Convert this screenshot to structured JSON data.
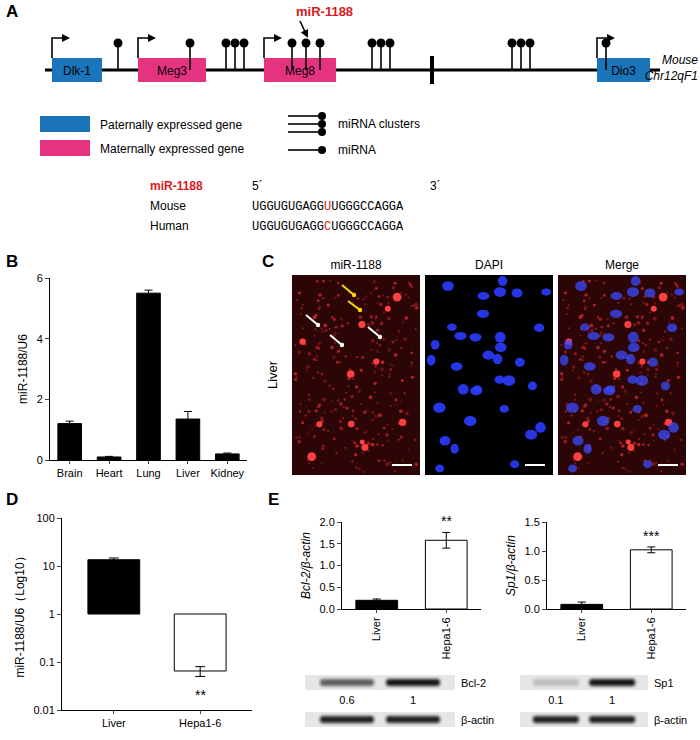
{
  "panel_labels": [
    "A",
    "B",
    "C",
    "D",
    "E"
  ],
  "diagram": {
    "genes": [
      {
        "label": "Dlk-1",
        "expression": "paternal"
      },
      {
        "label": "Meg3",
        "expression": "maternal"
      },
      {
        "label": "Meg8",
        "expression": "maternal"
      },
      {
        "label": "Dio3",
        "expression": "paternal"
      }
    ],
    "colors": {
      "paternal": "#1b75bb",
      "maternal": "#e6337f"
    },
    "mirna_label": "miR-1188",
    "chromosome": [
      "Mouse",
      "Chr12qF1"
    ],
    "legend": {
      "paternal": "Paternally expressed gene",
      "maternal": "Maternally expressed gene",
      "cluster": "miRNA clusters",
      "single": "miRNA"
    },
    "alignment": {
      "title": "miR-1188",
      "five_prime": "5´",
      "three_prime": "3´",
      "rows": [
        {
          "name": "Mouse",
          "before": "UGGUGUGAGG",
          "variant": "U",
          "after": "UGGGCCAGGA"
        },
        {
          "name": "Human",
          "before": "UGGUGUGAGG",
          "variant": "C",
          "after": "UGGGCCAGGA"
        }
      ]
    }
  },
  "chart_data": [
    {
      "type": "bar",
      "categories": [
        "Brain",
        "Heart",
        "Lung",
        "Liver",
        "Kidney"
      ],
      "values": [
        1.2,
        0.1,
        5.5,
        1.35,
        0.2
      ],
      "errors": [
        0.08,
        0.02,
        0.1,
        0.25,
        0.03
      ],
      "color": "#000000",
      "y_label": "miR-1188/U6",
      "ylim": [
        0,
        6
      ],
      "yticks": [
        0,
        2,
        4,
        6
      ]
    },
    {
      "type": "bar",
      "log": "y",
      "categories": [
        "Liver",
        "Hepa1-6"
      ],
      "values": [
        13.5,
        0.065
      ],
      "errors": [
        1.2,
        0.015
      ],
      "bar_base": 1,
      "colors": [
        "#000000",
        "#ffffff"
      ],
      "y_label": "miR-1188/U6（Log10）",
      "ylim": [
        0.01,
        100
      ],
      "yticks": [
        0.01,
        0.1,
        1,
        10,
        100
      ],
      "annotations": [
        {
          "category": "Hepa1-6",
          "text": "**"
        }
      ]
    },
    {
      "type": "bar",
      "categories": [
        "Liver",
        "Hepa1-6"
      ],
      "values": [
        0.2,
        1.58
      ],
      "errors": [
        0.03,
        0.18
      ],
      "colors": [
        "#000000",
        "#ffffff"
      ],
      "y_label": "Bcl-2/β-actin",
      "ylim": [
        0,
        2
      ],
      "yticks": [
        {
          "value": 0,
          "label": "0.0"
        },
        0.5,
        {
          "value": 1,
          "label": "1.0"
        },
        1.5,
        {
          "value": 2,
          "label": "2.0"
        }
      ],
      "annotations": [
        {
          "category": "Hepa1-6",
          "text": "**"
        }
      ]
    },
    {
      "type": "bar",
      "categories": [
        "Liver",
        "Hepa1-6"
      ],
      "values": [
        0.08,
        1.02
      ],
      "errors": [
        0.04,
        0.05
      ],
      "colors": [
        "#000000",
        "#ffffff"
      ],
      "y_label": "Sp1/β-actin",
      "ylim": [
        0,
        1.5
      ],
      "yticks": [
        {
          "value": 0,
          "label": "0.0"
        },
        0.5,
        {
          "value": 1,
          "label": "1.0"
        },
        1.5
      ],
      "annotations": [
        {
          "category": "Hepa1-6",
          "text": "***"
        }
      ]
    }
  ],
  "micrograph": {
    "row_label": "Liver",
    "columns": [
      "miR-1188",
      "DAPI",
      "Merge"
    ]
  },
  "blots": [
    {
      "target": "Bcl-2",
      "loading": "β-actin",
      "values": [
        0.6,
        1
      ]
    },
    {
      "target": "Sp1",
      "loading": "β-actin",
      "values": [
        0.1,
        1
      ]
    }
  ]
}
